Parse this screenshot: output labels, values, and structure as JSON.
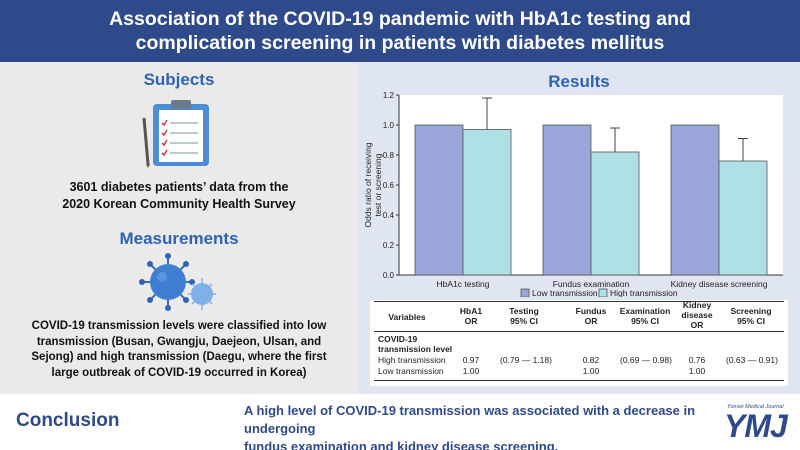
{
  "header": {
    "title_line1": "Association of the COVID-19 pandemic with HbA1c testing and",
    "title_line2": "complication screening in patients with diabetes mellitus"
  },
  "left": {
    "subjects_title": "Subjects",
    "subjects_line1": "3601 diabetes patients’ data from the",
    "subjects_line2": "2020 Korean Community Health Survey",
    "measurements_title": "Measurements",
    "meas_lines": [
      "COVID-19 transmission levels were classified into low",
      "transmission (Busan, Gwangju, Daejeon, Ulsan, and",
      "Sejong) and high transmission (Daegu, where the first",
      "large outbreak of COVID-19 occurred in Korea)"
    ]
  },
  "right": {
    "results_title": "Results"
  },
  "chart_data": {
    "type": "bar",
    "categories": [
      "HbA1c testing",
      "Fundus examination",
      "Kidney disease screening"
    ],
    "series": [
      {
        "name": "Low transmission",
        "values": [
          1.0,
          1.0,
          1.0
        ],
        "color": "#9aa6d9"
      },
      {
        "name": "High transmission",
        "values": [
          0.97,
          0.82,
          0.76
        ],
        "color": "#aee0e6",
        "ci_low": [
          0.79,
          0.69,
          0.63
        ],
        "ci_high": [
          1.18,
          0.98,
          0.91
        ]
      }
    ],
    "ylabel": "Odds ratio of receiving test or screening",
    "ylabel_line1": "Odds ratio of receiving",
    "ylabel_line2": "test or screening",
    "ylim": [
      0,
      1.2
    ],
    "yticks": [
      "0.0",
      "0.2",
      "0.4",
      "0.6",
      "0.8",
      "1.0",
      "1.2"
    ],
    "legend_position": "bottom"
  },
  "table": {
    "headers": {
      "variables": "Variables",
      "hba1_l1": "HbA1",
      "hba1_l2": "OR",
      "testing_l1": "Testing",
      "testing_l2": "95% CI",
      "fundus_l1": "Fundus",
      "fundus_l2": "OR",
      "exam_l1": "Examination",
      "exam_l2": "95% CI",
      "kidney_l1": "Kidney",
      "kidney_l2": "disease",
      "kidney_l3": "OR",
      "screen_l1": "Screening",
      "screen_l2": "95% CI"
    },
    "group_l1": "COVID-19",
    "group_l2": "transmission level",
    "rows": [
      {
        "label": "High transmission",
        "hba1_or": "0.97",
        "testing_ci": "(0.79 — 1.18)",
        "fundus_or": "0.82",
        "exam_ci": "(0.69 — 0.98)",
        "kidney_or": "0.76",
        "screen_ci": "(0.63 — 0.91)"
      },
      {
        "label": "Low transmission",
        "hba1_or": "1.00",
        "testing_ci": "",
        "fundus_or": "1.00",
        "exam_ci": "",
        "kidney_or": "1.00",
        "screen_ci": ""
      }
    ]
  },
  "conclusion": {
    "label": "Conclusion",
    "line1": "A high level of COVID-19 transmission was associated with a decrease in undergoing",
    "line2": "fundus examination and kidney disease screening."
  },
  "logo": {
    "subtitle": "Yonsei Medical Journal",
    "text": "YMJ"
  },
  "colors": {
    "header": "#2f4a8a",
    "accent": "#2f63b3",
    "low": "#9aa6d9",
    "high": "#aee0e6"
  }
}
